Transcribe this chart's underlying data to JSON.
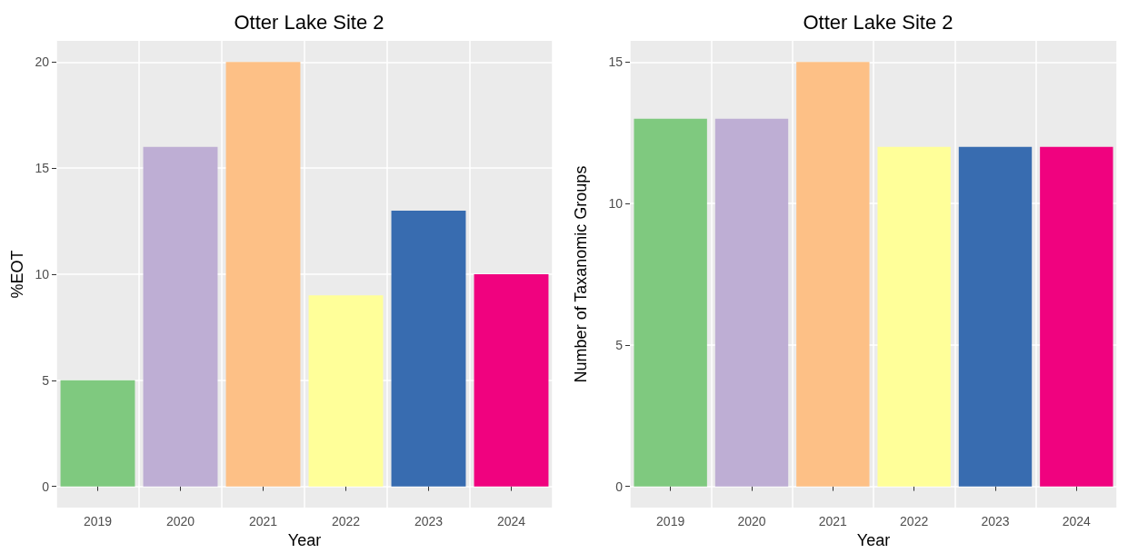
{
  "chart_data": [
    {
      "type": "bar",
      "title": "Otter Lake Site 2",
      "xlabel": "Year",
      "ylabel": "%EOT",
      "categories": [
        "2019",
        "2020",
        "2021",
        "2022",
        "2023",
        "2024"
      ],
      "values": [
        5,
        16,
        20,
        9,
        13,
        10
      ],
      "colors": [
        "#7fc97f",
        "#beaed4",
        "#fdc086",
        "#ffff99",
        "#386cb0",
        "#f0027f"
      ],
      "ylim": [
        -1,
        21
      ],
      "yticks": [
        0,
        5,
        10,
        15,
        20
      ],
      "grid": true
    },
    {
      "type": "bar",
      "title": "Otter Lake Site 2",
      "xlabel": "Year",
      "ylabel": "Number of Taxanomic Groups",
      "categories": [
        "2019",
        "2020",
        "2021",
        "2022",
        "2023",
        "2024"
      ],
      "values": [
        13,
        13,
        15,
        12,
        12,
        12
      ],
      "colors": [
        "#7fc97f",
        "#beaed4",
        "#fdc086",
        "#ffff99",
        "#386cb0",
        "#f0027f"
      ],
      "ylim": [
        -0.75,
        15.75
      ],
      "yticks": [
        0,
        5,
        10,
        15
      ],
      "grid": true
    }
  ]
}
